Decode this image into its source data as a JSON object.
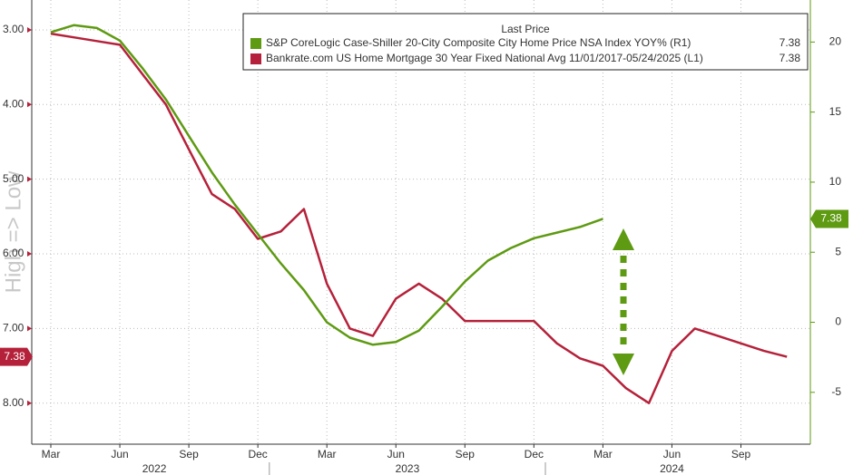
{
  "chart_data": {
    "type": "line",
    "y_label": "High => Low",
    "legend_title": "Last Price",
    "x": [
      "2022-03",
      "2022-04",
      "2022-05",
      "2022-06",
      "2022-07",
      "2022-08",
      "2022-09",
      "2022-10",
      "2022-11",
      "2022-12",
      "2023-01",
      "2023-02",
      "2023-03",
      "2023-04",
      "2023-05",
      "2023-06",
      "2023-07",
      "2023-08",
      "2023-09",
      "2023-10",
      "2023-11",
      "2023-12",
      "2024-01",
      "2024-02",
      "2024-03",
      "2024-04",
      "2024-05",
      "2024-06",
      "2024-07",
      "2024-08",
      "2024-09",
      "2024-10",
      "2024-11"
    ],
    "xticks": [
      {
        "value": "2022-03",
        "label": "Mar"
      },
      {
        "value": "2022-06",
        "label": "Jun"
      },
      {
        "value": "2022-09",
        "label": "Sep"
      },
      {
        "value": "2022-12",
        "label": "Dec"
      },
      {
        "value": "2023-03",
        "label": "Mar"
      },
      {
        "value": "2023-06",
        "label": "Jun"
      },
      {
        "value": "2023-09",
        "label": "Sep"
      },
      {
        "value": "2023-12",
        "label": "Dec"
      },
      {
        "value": "2024-03",
        "label": "Mar"
      },
      {
        "value": "2024-06",
        "label": "Jun"
      },
      {
        "value": "2024-09",
        "label": "Sep"
      }
    ],
    "years": [
      "2022",
      "2023",
      "2024"
    ],
    "ylim": [
      8.55,
      2.6
    ],
    "yticks": [
      {
        "value": 3,
        "label": "3.00"
      },
      {
        "value": 4,
        "label": "4.00"
      },
      {
        "value": 5,
        "label": "5.00"
      },
      {
        "value": 6,
        "label": "6.00"
      },
      {
        "value": 7,
        "label": "7.00"
      },
      {
        "value": 8,
        "label": "8.00"
      }
    ],
    "y2lim": [
      -8.7,
      23
    ],
    "y2ticks": [
      20,
      15,
      10,
      5,
      0,
      -5
    ],
    "grid": true,
    "series": [
      {
        "name": "Bankrate.com US Home Mortgage 30 Year Fixed National Avg 11/01/2017-05/24/2025  (L1)",
        "color": "#b5213a",
        "axis": "y",
        "values": [
          3.05,
          3.1,
          3.15,
          3.2,
          3.6,
          4.0,
          4.6,
          5.2,
          5.4,
          5.8,
          5.7,
          5.4,
          6.4,
          7.0,
          7.1,
          6.6,
          6.4,
          6.6,
          6.9,
          6.9,
          6.9,
          6.9,
          7.2,
          7.4,
          7.5,
          7.8,
          8.0,
          7.3,
          7.0,
          7.1,
          7.2,
          7.3,
          7.38
        ]
      },
      {
        "name": "S&P CoreLogic Case-Shiller 20-City Composite City Home Price NSA Index YOY%  (R1)",
        "color": "#5e9a12",
        "axis": "y2",
        "values": [
          20.7,
          21.2,
          21.0,
          20.1,
          18.1,
          15.9,
          13.3,
          10.7,
          8.4,
          6.3,
          4.2,
          2.3,
          0.0,
          -1.1,
          -1.6,
          -1.4,
          -0.6,
          1.1,
          2.9,
          4.4,
          5.3,
          6.0,
          6.4,
          6.8,
          7.38,
          null,
          null,
          null,
          null,
          null,
          null,
          null,
          null
        ]
      }
    ]
  }
}
